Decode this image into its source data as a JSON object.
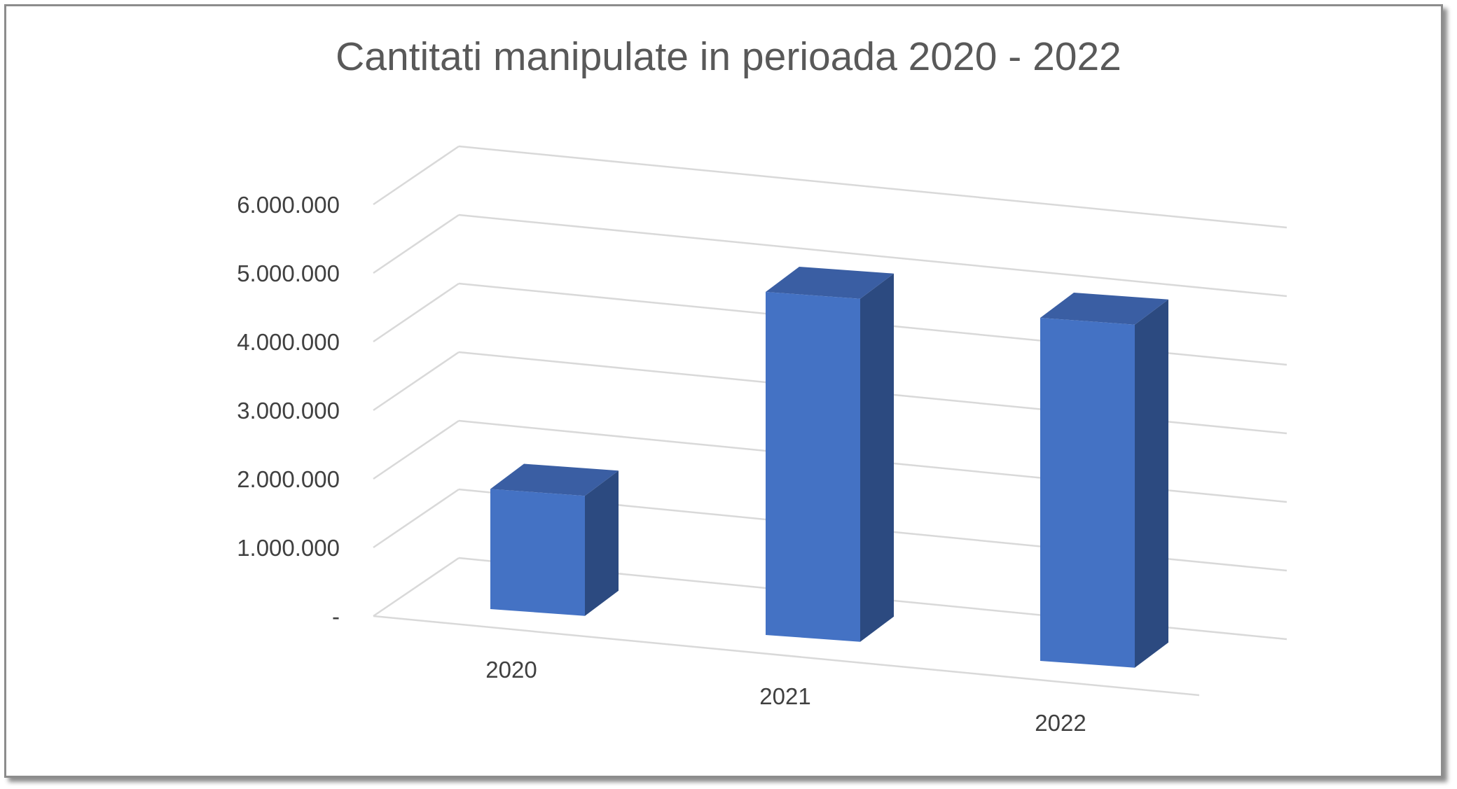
{
  "chart_data": {
    "type": "bar",
    "title": "Cantitati manipulate in perioada 2020 - 2022",
    "categories": [
      "2020",
      "2021",
      "2022"
    ],
    "values": [
      1750000,
      5000000,
      5000000
    ],
    "yticks": [
      0,
      1000000,
      2000000,
      3000000,
      4000000,
      5000000,
      6000000
    ],
    "ytick_labels": [
      "-",
      "1.000.000",
      "2.000.000",
      "3.000.000",
      "4.000.000",
      "5.000.000",
      "6.000.000"
    ],
    "ylim": [
      0,
      6000000
    ],
    "grid": true,
    "legend": "none",
    "style": "3d-column",
    "colors": {
      "front": "#4472c4",
      "side": "#2c4a80",
      "top": "#3a5ea3",
      "grid": "#d9d9d9",
      "text": "#404040",
      "title": "#595959"
    }
  }
}
